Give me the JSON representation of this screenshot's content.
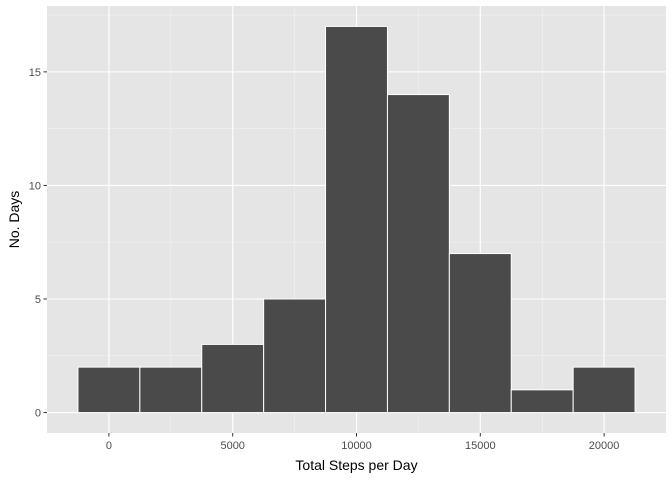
{
  "chart_data": {
    "type": "bar",
    "title": "",
    "xlabel": "Total Steps per Day",
    "ylabel": "No. Days",
    "bin_width": 2500,
    "bins": [
      {
        "center": 0,
        "count": 2
      },
      {
        "center": 2500,
        "count": 2
      },
      {
        "center": 5000,
        "count": 3
      },
      {
        "center": 7500,
        "count": 5
      },
      {
        "center": 10000,
        "count": 17
      },
      {
        "center": 12500,
        "count": 14
      },
      {
        "center": 15000,
        "count": 7
      },
      {
        "center": 17500,
        "count": 1
      },
      {
        "center": 20000,
        "count": 2
      }
    ],
    "xlim": [
      -2500,
      22500
    ],
    "ylim": [
      -0.9,
      17.9
    ],
    "x_ticks": [
      0,
      5000,
      10000,
      15000,
      20000
    ],
    "y_ticks": [
      0,
      5,
      10,
      15
    ],
    "x_tick_labels": [
      "0",
      "5000",
      "10000",
      "15000",
      "20000"
    ],
    "y_tick_labels": [
      "0",
      "5",
      "10",
      "15"
    ],
    "grid": true,
    "colors": {
      "panel": "#e5e5e5",
      "grid_major": "#ffffff",
      "grid_minor": "#f2f2f2",
      "bar_fill": "#4a4a4a",
      "bar_stroke": "#ffffff",
      "tick": "#333333",
      "tick_label": "#4d4d4d"
    }
  }
}
